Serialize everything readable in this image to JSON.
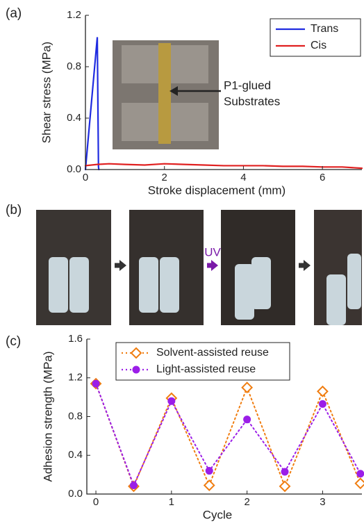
{
  "chart_data": [
    {
      "type": "line",
      "panel_label": "(a)",
      "x_label": "Stroke displacement (mm)",
      "y_label": "Shear stress (MPa)",
      "xlim": [
        0,
        7
      ],
      "ylim": [
        0,
        1.2
      ],
      "xticks": [
        0,
        2,
        4,
        6
      ],
      "yticks": [
        {
          "value": 0,
          "label": "0.0"
        },
        0.4,
        0.8,
        1.2
      ],
      "legend": "upper right",
      "annotation": [
        "P1-glued",
        "Substrates"
      ],
      "series": [
        {
          "name": "Trans",
          "color": "#1f2be0",
          "linestyle": "solid",
          "x": [
            0,
            0.3,
            0.33,
            0.34
          ],
          "values": [
            0,
            1.03,
            0.02,
            0
          ]
        },
        {
          "name": "Cis",
          "color": "#e02020",
          "linestyle": "solid",
          "x": [
            0,
            0.3,
            0.6,
            1.0,
            1.5,
            2.0,
            2.5,
            3.0,
            3.5,
            4.0,
            4.5,
            5.0,
            5.5,
            6.0,
            6.5,
            7.0
          ],
          "values": [
            0.03,
            0.04,
            0.045,
            0.04,
            0.035,
            0.045,
            0.04,
            0.035,
            0.03,
            0.03,
            0.03,
            0.025,
            0.025,
            0.02,
            0.02,
            0.01
          ]
        }
      ]
    },
    {
      "type": "line",
      "panel_label": "(c)",
      "x_label": "Cycle",
      "y_label": "Adhesion strength (MPa)",
      "xlim": [
        -0.12,
        3.52
      ],
      "ylim": [
        0,
        1.6
      ],
      "xticks": [
        0,
        1,
        2,
        3
      ],
      "yticks": [
        {
          "value": 0,
          "label": "0.0"
        },
        0.4,
        0.8,
        1.2,
        1.6
      ],
      "legend": "upper center",
      "x": [
        0,
        0.5,
        1,
        1.5,
        2,
        2.5,
        3,
        3.5
      ],
      "series": [
        {
          "name": "Solvent-assisted reuse",
          "color": "#f07d10",
          "marker": "diamond",
          "linestyle": "dotted",
          "values": [
            1.14,
            0.08,
            0.99,
            0.09,
            1.1,
            0.08,
            1.06,
            0.11
          ]
        },
        {
          "name": "Light-assisted reuse",
          "color": "#9b1ee8",
          "marker": "circle",
          "linestyle": "dotted",
          "values": [
            1.14,
            0.09,
            0.96,
            0.24,
            0.77,
            0.23,
            0.93,
            0.21
          ]
        }
      ]
    }
  ],
  "photo_panel": {
    "panel_label": "(b)",
    "arrow_label": "UV"
  }
}
